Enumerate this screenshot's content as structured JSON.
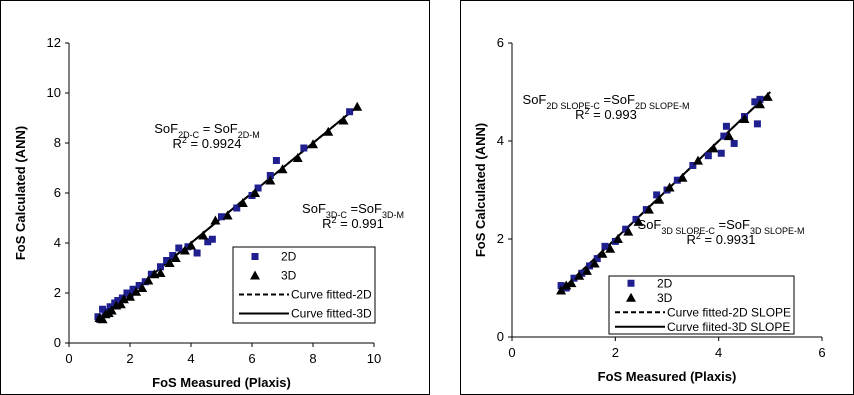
{
  "chart_data": [
    {
      "type": "scatter",
      "title": "",
      "xlabel": "FoS Measured (Plaxis)",
      "ylabel": "FoS Calculated (ANN)",
      "xlim": [
        0,
        10
      ],
      "ylim": [
        0,
        12
      ],
      "xticks": [
        "0",
        "2",
        "4",
        "6",
        "8",
        "10"
      ],
      "yticks": [
        "0",
        "2",
        "4",
        "6",
        "8",
        "10",
        "12"
      ],
      "grid": false,
      "legend_position": "bottom-right",
      "legend": [
        "2D",
        "3D",
        "Curve fitted-2D",
        "Curve fitted-3D"
      ],
      "annotations": [
        {
          "base1": "SoF",
          "sub1": "2D-C",
          "mid": " = SoF",
          "sub2": "2D-M",
          "r2": "R",
          "r2sup": "2",
          "r2val": " = 0.9924"
        },
        {
          "base1": "SoF",
          "sub1": "3D-C",
          "mid": " =SoF",
          "sub2": "3D-M",
          "r2": "R",
          "r2sup": "2",
          "r2val": " = 0.991"
        }
      ],
      "series": [
        {
          "name": "2D",
          "marker": "square",
          "color": "#1f1f8f",
          "points": [
            [
              0.95,
              1.05
            ],
            [
              1.0,
              0.95
            ],
            [
              1.1,
              1.35
            ],
            [
              1.2,
              1.25
            ],
            [
              1.35,
              1.45
            ],
            [
              1.5,
              1.6
            ],
            [
              1.6,
              1.7
            ],
            [
              1.75,
              1.8
            ],
            [
              1.9,
              2.0
            ],
            [
              2.0,
              1.9
            ],
            [
              2.1,
              2.15
            ],
            [
              2.3,
              2.3
            ],
            [
              2.5,
              2.45
            ],
            [
              2.7,
              2.75
            ],
            [
              3.0,
              3.05
            ],
            [
              3.2,
              3.3
            ],
            [
              3.4,
              3.5
            ],
            [
              3.6,
              3.8
            ],
            [
              3.9,
              3.85
            ],
            [
              4.2,
              3.6
            ],
            [
              4.55,
              4.05
            ],
            [
              4.7,
              4.15
            ],
            [
              5.0,
              5.05
            ],
            [
              5.5,
              5.4
            ],
            [
              6.0,
              5.9
            ],
            [
              6.2,
              6.2
            ],
            [
              6.6,
              6.7
            ],
            [
              6.8,
              7.3
            ],
            [
              7.7,
              7.8
            ],
            [
              9.2,
              9.25
            ]
          ]
        },
        {
          "name": "3D",
          "marker": "triangle",
          "color": "#000000",
          "points": [
            [
              1.0,
              1.0
            ],
            [
              1.1,
              0.95
            ],
            [
              1.2,
              1.15
            ],
            [
              1.3,
              1.2
            ],
            [
              1.4,
              1.3
            ],
            [
              1.55,
              1.5
            ],
            [
              1.7,
              1.55
            ],
            [
              1.8,
              1.75
            ],
            [
              2.0,
              1.85
            ],
            [
              2.2,
              2.05
            ],
            [
              2.4,
              2.2
            ],
            [
              2.6,
              2.5
            ],
            [
              2.8,
              2.75
            ],
            [
              3.0,
              2.8
            ],
            [
              3.3,
              3.2
            ],
            [
              3.5,
              3.4
            ],
            [
              3.8,
              3.7
            ],
            [
              4.0,
              3.9
            ],
            [
              4.4,
              4.3
            ],
            [
              4.8,
              4.9
            ],
            [
              5.2,
              5.1
            ],
            [
              5.7,
              5.6
            ],
            [
              6.1,
              6.0
            ],
            [
              6.6,
              6.5
            ],
            [
              7.0,
              6.95
            ],
            [
              7.5,
              7.4
            ],
            [
              8.0,
              7.95
            ],
            [
              8.5,
              8.45
            ],
            [
              9.0,
              8.9
            ],
            [
              9.45,
              9.45
            ]
          ]
        },
        {
          "name": "Curve fitted-2D",
          "type": "line",
          "style": "dashed",
          "x": [
            0.9,
            9.3
          ],
          "y": [
            0.9,
            9.3
          ]
        },
        {
          "name": "Curve fitted-3D",
          "type": "line",
          "style": "solid",
          "x": [
            0.9,
            9.5
          ],
          "y": [
            0.9,
            9.5
          ]
        }
      ]
    },
    {
      "type": "scatter",
      "title": "",
      "xlabel": "FoS Measured (Plaxis)",
      "ylabel": "FoS Calculated (ANN)",
      "xlim": [
        0,
        6
      ],
      "ylim": [
        0,
        6
      ],
      "xticks": [
        "0",
        "2",
        "4",
        "6"
      ],
      "yticks": [
        "0",
        "2",
        "4",
        "6"
      ],
      "grid": false,
      "legend_position": "bottom-left",
      "legend": [
        "2D",
        "3D",
        "Curve fitted-2D SLOPE",
        "Curve fiited-3D SLOPE"
      ],
      "annotations": [
        {
          "base1": "SoF",
          "sub1": "2D SLOPE-C",
          "mid": " =SoF",
          "sub2": "2D SLOPE-M",
          "r2": "R",
          "r2sup": "2",
          "r2val": " = 0.993"
        },
        {
          "base1": "SoF",
          "sub1": "3D SLOPE-C",
          "mid": " =SoF",
          "sub2": "3D SLOPE-M",
          "r2": "R",
          "r2sup": "2",
          "r2val": " = 0.9931"
        }
      ],
      "series": [
        {
          "name": "2D",
          "marker": "square",
          "color": "#1f1f8f",
          "points": [
            [
              0.95,
              1.05
            ],
            [
              1.05,
              1.0
            ],
            [
              1.2,
              1.2
            ],
            [
              1.35,
              1.3
            ],
            [
              1.5,
              1.45
            ],
            [
              1.65,
              1.6
            ],
            [
              1.8,
              1.85
            ],
            [
              2.0,
              1.95
            ],
            [
              2.2,
              2.2
            ],
            [
              2.4,
              2.4
            ],
            [
              2.6,
              2.6
            ],
            [
              2.8,
              2.9
            ],
            [
              3.0,
              3.0
            ],
            [
              3.2,
              3.2
            ],
            [
              3.5,
              3.5
            ],
            [
              3.8,
              3.7
            ],
            [
              4.05,
              3.75
            ],
            [
              4.1,
              4.1
            ],
            [
              4.15,
              4.3
            ],
            [
              4.3,
              3.95
            ],
            [
              4.5,
              4.5
            ],
            [
              4.7,
              4.8
            ],
            [
              4.8,
              4.85
            ],
            [
              4.75,
              4.35
            ]
          ]
        },
        {
          "name": "3D",
          "marker": "triangle",
          "color": "#000000",
          "points": [
            [
              0.95,
              0.95
            ],
            [
              1.05,
              1.05
            ],
            [
              1.15,
              1.1
            ],
            [
              1.3,
              1.25
            ],
            [
              1.45,
              1.35
            ],
            [
              1.6,
              1.5
            ],
            [
              1.75,
              1.7
            ],
            [
              1.9,
              1.8
            ],
            [
              2.05,
              2.0
            ],
            [
              2.25,
              2.15
            ],
            [
              2.45,
              2.35
            ],
            [
              2.65,
              2.6
            ],
            [
              2.85,
              2.8
            ],
            [
              3.05,
              3.05
            ],
            [
              3.3,
              3.25
            ],
            [
              3.6,
              3.6
            ],
            [
              3.9,
              3.85
            ],
            [
              4.2,
              4.1
            ],
            [
              4.5,
              4.45
            ],
            [
              4.8,
              4.75
            ],
            [
              4.95,
              4.9
            ]
          ]
        },
        {
          "name": "Curve fitted-2D SLOPE",
          "type": "line",
          "style": "dashed",
          "x": [
            0.9,
            4.85
          ],
          "y": [
            0.9,
            4.85
          ]
        },
        {
          "name": "Curve fiited-3D SLOPE",
          "type": "line",
          "style": "solid",
          "x": [
            0.9,
            5.0
          ],
          "y": [
            0.9,
            5.0
          ]
        }
      ]
    }
  ]
}
